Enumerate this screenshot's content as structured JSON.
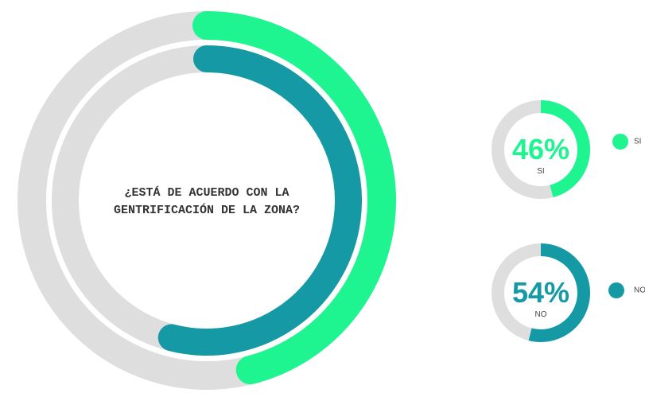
{
  "chart_data": {
    "type": "radial_bar",
    "title": "¿ESTÁ DE ACUERDO CON LA GENTRIFICACIÓN DE LA ZONA?",
    "max": 100,
    "track_color": "#dedede",
    "series": [
      {
        "name": "SI",
        "color": "#1ef590",
        "values": [
          46
        ],
        "value_labels": [
          "46%"
        ]
      },
      {
        "name": "NO",
        "color": "#1599a5",
        "values": [
          54
        ],
        "value_labels": [
          "54%"
        ]
      }
    ]
  }
}
